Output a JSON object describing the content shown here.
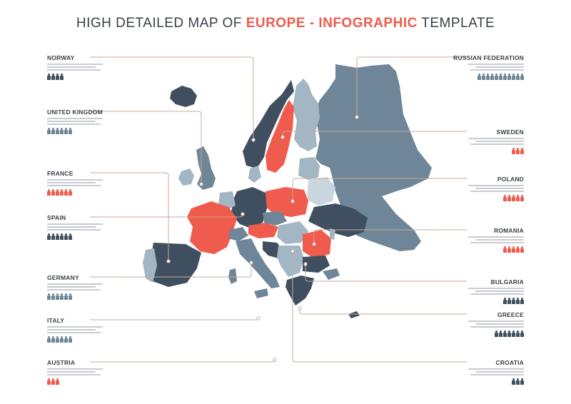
{
  "title": {
    "prefix": "HIGH DETAILED MAP OF ",
    "highlight1": "EUROPE",
    "dash": " - ",
    "highlight2": "INFOGRAPHIC",
    "suffix": " TEMPLATE"
  },
  "colors": {
    "red": "#ef5b4c",
    "dark": "#3f4f5f",
    "mid": "#6e8697",
    "light": "#a3b6c4",
    "pale": "#c9d6df",
    "line": "#c8a99a",
    "text": "#3a3f48"
  },
  "left_labels": [
    {
      "name": "NORWAY",
      "people": 4,
      "color": "dark"
    },
    {
      "name": "UNITED KINGDOM",
      "people": 6,
      "color": "mid"
    },
    {
      "name": "FRANCE",
      "people": 6,
      "color": "red"
    },
    {
      "name": "SPAIN",
      "people": 6,
      "color": "dark"
    },
    {
      "name": "GERMANY",
      "people": 6,
      "color": "mid"
    },
    {
      "name": "ITALY",
      "people": 6,
      "color": "mid"
    },
    {
      "name": "AUSTRIA",
      "people": 3,
      "color": "red"
    }
  ],
  "right_labels": [
    {
      "name": "RUSSIAN FEDERATION",
      "people": 11,
      "color": "mid"
    },
    {
      "name": "SWEDEN",
      "people": 3,
      "color": "red"
    },
    {
      "name": "POLAND",
      "people": 5,
      "color": "red"
    },
    {
      "name": "ROMANIA",
      "people": 5,
      "color": "red"
    },
    {
      "name": "BULGARIA",
      "people": 5,
      "color": "dark"
    },
    {
      "name": "GREECE",
      "people": 7,
      "color": "dark"
    },
    {
      "name": "CROATIA",
      "people": 3,
      "color": "dark"
    }
  ]
}
